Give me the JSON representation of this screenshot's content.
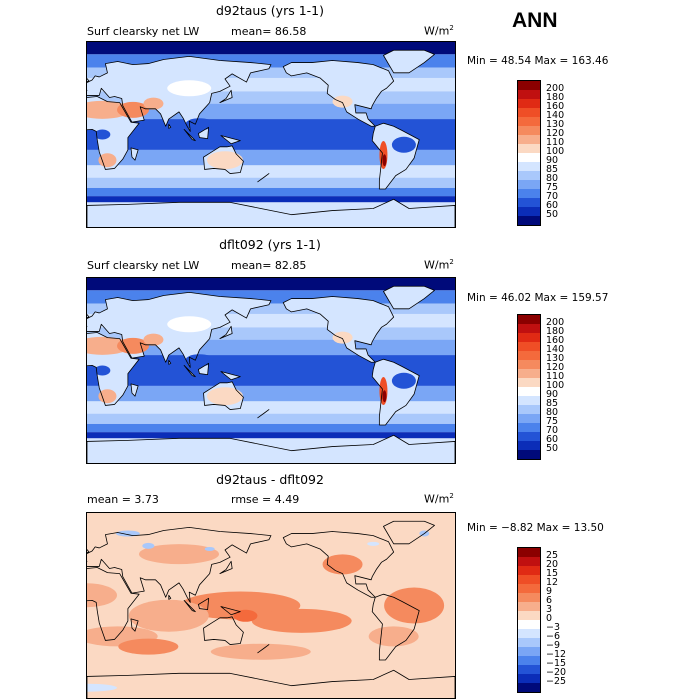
{
  "season_label": "ANN",
  "panels": [
    {
      "title": "d92taus (yrs 1-1)",
      "left_label": "Surf clearsky net LW",
      "stat_label": "mean=  86.58",
      "units_base": "W/m",
      "units_exp": "2",
      "minmax": "Min =  48.54 Max = 163.46",
      "kind": "abs",
      "colorbar_levels": [
        "200",
        "180",
        "160",
        "140",
        "130",
        "120",
        "110",
        "100",
        "90",
        "85",
        "80",
        "75",
        "70",
        "60",
        "50"
      ],
      "colorbar_colors": [
        "#8b0000",
        "#c01010",
        "#e02a14",
        "#ef4e26",
        "#f46a3c",
        "#f58a5e",
        "#f7ae8c",
        "#fbd9c3",
        "#ffffff",
        "#d4e5ff",
        "#a9c8fb",
        "#7aa6f5",
        "#4b82ec",
        "#2353d6",
        "#0b2db8",
        "#000a7a"
      ]
    },
    {
      "title": "dflt092 (yrs 1-1)",
      "left_label": "Surf clearsky net LW",
      "stat_label": "mean=  82.85",
      "units_base": "W/m",
      "units_exp": "2",
      "minmax": "Min =  46.02 Max = 159.57",
      "kind": "abs",
      "colorbar_levels": [
        "200",
        "180",
        "160",
        "140",
        "130",
        "120",
        "110",
        "100",
        "90",
        "85",
        "80",
        "75",
        "70",
        "60",
        "50"
      ],
      "colorbar_colors": [
        "#8b0000",
        "#c01010",
        "#e02a14",
        "#ef4e26",
        "#f46a3c",
        "#f58a5e",
        "#f7ae8c",
        "#fbd9c3",
        "#ffffff",
        "#d4e5ff",
        "#a9c8fb",
        "#7aa6f5",
        "#4b82ec",
        "#2353d6",
        "#0b2db8",
        "#000a7a"
      ]
    },
    {
      "title": "d92taus - dflt092",
      "left_label": "mean =    3.73",
      "stat_label": "rmse =    4.49",
      "units_base": "W/m",
      "units_exp": "2",
      "minmax": "Min = −8.82 Max =  13.50",
      "kind": "diff",
      "colorbar_levels": [
        "25",
        "20",
        "15",
        "12",
        "9",
        "6",
        "3",
        "0",
        "−3",
        "−6",
        "−9",
        "−12",
        "−15",
        "−20",
        "−25"
      ],
      "colorbar_colors": [
        "#8b0000",
        "#c01010",
        "#e02a14",
        "#ef4e26",
        "#f46a3c",
        "#f58a5e",
        "#f7ae8c",
        "#fbd9c3",
        "#ffffff",
        "#d4e5ff",
        "#a9c8fb",
        "#7aa6f5",
        "#4b82ec",
        "#2353d6",
        "#0b2db8",
        "#000a7a"
      ]
    }
  ]
}
